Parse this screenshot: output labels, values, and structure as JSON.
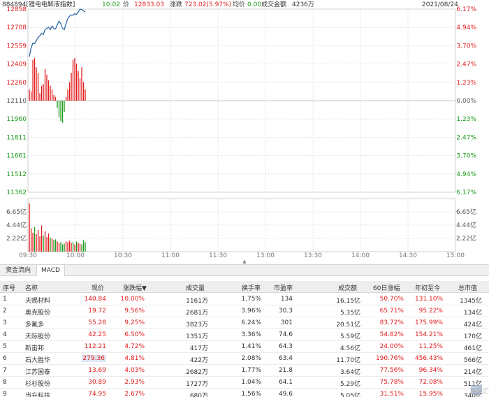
{
  "header": {
    "code_name": "884894[锂电电解液指数]",
    "time": "10:02",
    "price_label": "价",
    "price": "12833.03",
    "change_label": "涨跌",
    "change": "723.02(5.97%)",
    "avg_label": "均价",
    "avg": "0.00",
    "amount_label": "成交金额",
    "amount": "4236万",
    "date": "2021/08/24"
  },
  "chart_data": {
    "type": "line",
    "title": "",
    "xlabel": "",
    "ylabel": "",
    "price_ticks_left": [
      "12858",
      "12708",
      "12559",
      "12409",
      "12260",
      "12110",
      "11960",
      "11811",
      "11661",
      "11512",
      "11362"
    ],
    "pct_ticks_right": [
      "6.17%",
      "4.94%",
      "3.70%",
      "2.47%",
      "1.23%",
      "0.00%",
      "1.23%",
      "2.47%",
      "3.70%",
      "4.94%",
      "6.17%"
    ],
    "volume_ticks_left": [
      "6.65亿",
      "4.44亿",
      "2.22亿"
    ],
    "volume_ticks_right": [
      "6.65亿",
      "4.44亿",
      "2.22亿"
    ],
    "time_ticks": [
      "09:30",
      "10:00",
      "10:30",
      "11:00",
      "11:30",
      "13:00",
      "13:30",
      "14:00",
      "14:30",
      "15:00"
    ],
    "ylim": [
      11362,
      12858
    ],
    "base_price": 12110,
    "series": [
      {
        "values": [
          12470,
          12540,
          12580,
          12575,
          12600,
          12625,
          12640,
          12660,
          12650,
          12690,
          12700,
          12710,
          12690,
          12720,
          12700,
          12695,
          12730,
          12760,
          12740,
          12700,
          12690,
          12740,
          12780,
          12800,
          12810,
          12808,
          12820,
          12815,
          12833,
          12858,
          12855,
          12845,
          12833
        ]
      }
    ],
    "breadth_values": [
      6,
      5,
      22,
      23,
      18,
      15,
      4,
      8,
      9,
      17,
      14,
      11,
      8,
      6,
      3,
      2,
      -4,
      -9,
      -11,
      -12,
      -6,
      2,
      6,
      10,
      15,
      22,
      23,
      20,
      16,
      12,
      18,
      10,
      6
    ],
    "volume_values": [
      6.65,
      3.2,
      2.6,
      3.4,
      2.4,
      3.0,
      2.1,
      3.6,
      2.2,
      2.8,
      2.0,
      2.5,
      1.9,
      1.8,
      1.6,
      1.7,
      1.4,
      1.2,
      1.3,
      1.0,
      1.1,
      1.4,
      1.3,
      1.5,
      1.2,
      1.3,
      1.0,
      1.4,
      1.2,
      1.1,
      1.0,
      1.6,
      1.3
    ]
  },
  "tabs": [
    {
      "label": "资金流向"
    },
    {
      "label": "MACD"
    }
  ],
  "table": {
    "headers": [
      "序号",
      "名称",
      "现价",
      "涨跌幅",
      "成交量",
      "换手率",
      "市盈率",
      "成交额",
      "60日涨幅",
      "年初至今",
      "总市值"
    ],
    "sort_arrow": "▼",
    "rows": [
      [
        "1",
        "天赐材料",
        "140.84",
        "10.00%",
        "1161万",
        "1.75%",
        "134",
        "16.15亿",
        "50.70%",
        "131.10%",
        "1345亿"
      ],
      [
        "2",
        "奥克股份",
        "19.72",
        "9.56%",
        "2681万",
        "3.96%",
        "30.3",
        "5.35亿",
        "65.71%",
        "95.22%",
        "134亿"
      ],
      [
        "3",
        "多氟多",
        "55.28",
        "9.25%",
        "3823万",
        "6.24%",
        "301",
        "20.51亿",
        "83.72%",
        "175.99%",
        "424亿"
      ],
      [
        "4",
        "天际股份",
        "42.25",
        "6.50%",
        "1351万",
        "3.36%",
        "74.6",
        "5.59亿",
        "54.82%",
        "154.21%",
        "170亿"
      ],
      [
        "5",
        "新宙邦",
        "112.21",
        "4.72%",
        "417万",
        "1.41%",
        "64.3",
        "4.56亿",
        "24.00%",
        "11.25%",
        "461亿"
      ],
      [
        "6",
        "石大胜华",
        "279.36",
        "4.81%",
        "422万",
        "2.08%",
        "63.4",
        "11.70亿",
        "190.76%",
        "456.43%",
        "566亿"
      ],
      [
        "7",
        "江苏国泰",
        "13.69",
        "4.03%",
        "2682万",
        "1.77%",
        "21.8",
        "3.64亿",
        "77.56%",
        "96.34%",
        "214亿"
      ],
      [
        "8",
        "杉杉股份",
        "30.89",
        "2.93%",
        "1727万",
        "1.04%",
        "64.1",
        "5.29亿",
        "75.78%",
        "72.08%",
        "511亿"
      ],
      [
        "9",
        "当升科技",
        "74.95",
        "2.67%",
        "680万",
        "1.56%",
        "49.6",
        "5.05亿",
        "31.51%",
        "15.95%",
        "340亿"
      ]
    ]
  },
  "colors": {
    "up": "#e21b1b",
    "down": "#1a9b1a",
    "line": "#1f5fa0",
    "grid": "#dcdcdc",
    "highlight": "#dfe7f3"
  },
  "watermark_text": "格隆汇"
}
